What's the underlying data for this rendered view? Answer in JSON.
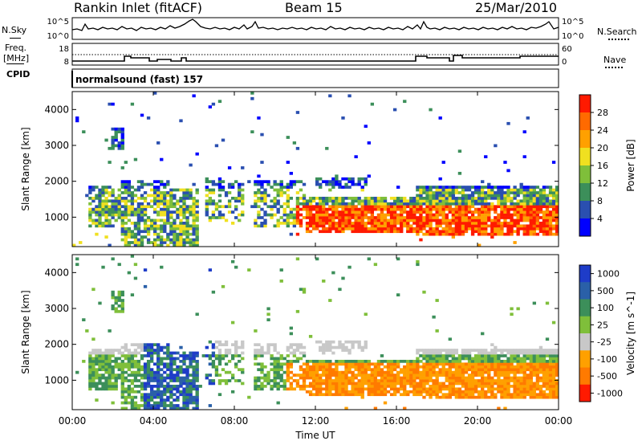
{
  "header": {
    "station": "Rankin Inlet (fitACF)",
    "beam": "Beam 15",
    "date": "25/Mar/2010"
  },
  "side_labels": {
    "nsky": "N.Sky",
    "nsearch": "N.Search",
    "freq": "Freq.",
    "freq_unit": "[MHz]",
    "nave": "Nave",
    "cpid": "CPID"
  },
  "top_axes": {
    "nsky_ticks": [
      "10^5",
      "10^0"
    ],
    "nsearch_ticks": [
      "10^5",
      "10^0"
    ],
    "freq_ticks": [
      "18",
      "8"
    ],
    "nave_ticks": [
      "60",
      "0"
    ]
  },
  "cpid_text": "normalsound (fast) 157",
  "colors": {
    "power_scale": [
      "#0000ff",
      "#2a4fb0",
      "#3c8f5a",
      "#7fbf3a",
      "#f0e020",
      "#ffa000",
      "#ff6a00",
      "#ff1a00"
    ],
    "velocity_scale": [
      "#1e3cc8",
      "#2a60a8",
      "#3c8f5a",
      "#7fbf3a",
      "#c8c8c8",
      "#ffa000",
      "#ff7a00",
      "#ff1a00"
    ]
  },
  "chart_data": [
    {
      "type": "heatmap",
      "panel": "power",
      "ylabel": "Slant Range [km]",
      "y_ticks": [
        "1000",
        "2000",
        "3000",
        "4000"
      ],
      "x_ticks": [
        "00:00",
        "04:00",
        "08:00",
        "12:00",
        "16:00",
        "20:00",
        "00:00"
      ],
      "xlim": [
        0,
        24
      ],
      "ylim": [
        180,
        4500
      ],
      "colorbar_label": "Power [dB]",
      "colorbar_ticks": [
        "28",
        "24",
        "20",
        "16",
        "12",
        "8",
        "4"
      ],
      "zlim": [
        0,
        30
      ]
    },
    {
      "type": "heatmap",
      "panel": "velocity",
      "xlabel": "Time UT",
      "ylabel": "Slant Range [km]",
      "y_ticks": [
        "1000",
        "2000",
        "3000",
        "4000"
      ],
      "x_ticks": [
        "00:00",
        "04:00",
        "08:00",
        "12:00",
        "16:00",
        "20:00",
        "00:00"
      ],
      "xlim": [
        0,
        24
      ],
      "ylim": [
        180,
        4500
      ],
      "colorbar_label": "Velocity [m s^-1]",
      "colorbar_ticks": [
        "1000",
        "500",
        "100",
        "25",
        "-25",
        "-100",
        "-500",
        "-1000"
      ],
      "zlim": [
        -1000,
        1000
      ]
    }
  ]
}
